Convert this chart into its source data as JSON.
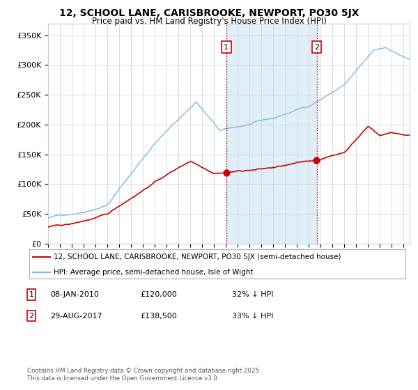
{
  "title": "12, SCHOOL LANE, CARISBROOKE, NEWPORT, PO30 5JX",
  "subtitle": "Price paid vs. HM Land Registry's House Price Index (HPI)",
  "xlim_start": 1995.0,
  "xlim_end": 2025.5,
  "ylim": [
    0,
    370000
  ],
  "yticks": [
    0,
    50000,
    100000,
    150000,
    200000,
    250000,
    300000,
    350000
  ],
  "ytick_labels": [
    "£0",
    "£50K",
    "£100K",
    "£150K",
    "£200K",
    "£250K",
    "£300K",
    "£350K"
  ],
  "hpi_color": "#7ab8e8",
  "price_color": "#cc0000",
  "background_color": "#ffffff",
  "grid_color": "#cccccc",
  "marker1_date": 2010.03,
  "marker2_date": 2017.66,
  "marker1_price": 120000,
  "marker2_price": 138500,
  "marker1_label": "1",
  "marker2_label": "2",
  "legend_line1": "12, SCHOOL LANE, CARISBROOKE, NEWPORT, PO30 5JX (semi-detached house)",
  "legend_line2": "HPI: Average price, semi-detached house, Isle of Wight",
  "ann1_num": "1",
  "ann1_date": "08-JAN-2010",
  "ann1_price": "£120,000",
  "ann1_pct": "32% ↓ HPI",
  "ann2_num": "2",
  "ann2_date": "29-AUG-2017",
  "ann2_price": "£138,500",
  "ann2_pct": "33% ↓ HPI",
  "footnote": "Contains HM Land Registry data © Crown copyright and database right 2025.\nThis data is licensed under the Open Government Licence v3.0.",
  "shade_color": "#e0eef8"
}
